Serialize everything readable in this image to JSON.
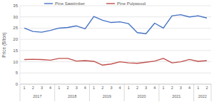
{
  "chart_data": {
    "type": "line",
    "y_label": "Price ($/ton)",
    "categories": [
      "1",
      "2",
      "3",
      "4",
      "1",
      "2",
      "3",
      "4",
      "1",
      "2",
      "3",
      "4",
      "1",
      "2",
      "3",
      "4",
      "1",
      "2",
      "3",
      "4",
      "1",
      "2"
    ],
    "category_groups": [
      {
        "label": "2017",
        "size": 4
      },
      {
        "label": "2018",
        "size": 4
      },
      {
        "label": "2019",
        "size": 4
      },
      {
        "label": "2020",
        "size": 4
      },
      {
        "label": "2021",
        "size": 4
      },
      {
        "label": "2022",
        "size": 2
      }
    ],
    "series": [
      {
        "name": "Pine Sawtimber",
        "color": "#4472c4",
        "values": [
          25,
          23.5,
          23.2,
          24,
          25,
          25.3,
          26,
          24.7,
          30.2,
          28.5,
          27.5,
          27.8,
          27,
          23,
          22.5,
          27.2,
          25,
          30.5,
          31,
          30,
          30.5,
          29.5
        ]
      },
      {
        "name": "Pine Pulpwood",
        "color": "#c0504d",
        "values": [
          11,
          11.1,
          11,
          10.7,
          11.5,
          11.5,
          10.3,
          10.5,
          10.2,
          8.5,
          9,
          10,
          9.5,
          9.3,
          9.8,
          10.3,
          11.5,
          9.5,
          10,
          11,
          10.2,
          10.5
        ]
      }
    ],
    "ylim": [
      0,
      35
    ],
    "yticks": [
      0,
      5,
      10,
      15,
      20,
      25,
      30,
      35
    ],
    "grid": true,
    "legend": "top"
  }
}
